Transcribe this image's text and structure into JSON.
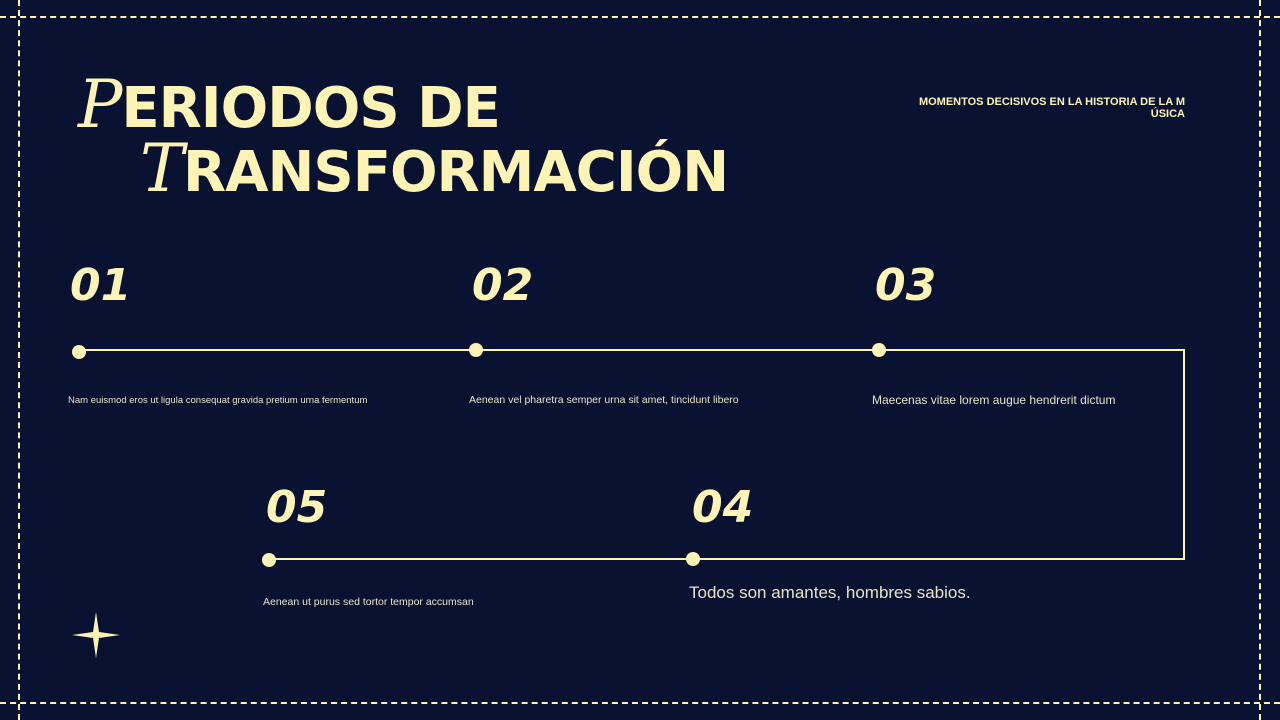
{
  "title": {
    "line1_cap": "P",
    "line1_rest": "ERIODOS DE",
    "line2_cap": "T",
    "line2_rest": "RANSFORMACIÓN"
  },
  "subtitle": "MOMENTOS DECISIVOS EN LA HISTORIA DE LA MÚSICA",
  "accent_color": "#fdf3b4",
  "background_color": "#0a1232",
  "steps": [
    {
      "number": "01",
      "text": "Nam euismod eros ut ligula consequat gravida pretium urna fermentum"
    },
    {
      "number": "02",
      "text": "Aenean vel pharetra semper urna sit amet, tincidunt libero"
    },
    {
      "number": "03",
      "text": "Maecenas vitae lorem augue hendrerit dictum"
    },
    {
      "number": "04",
      "text": "Todos son amantes, hombres sabios."
    },
    {
      "number": "05",
      "text": "Aenean ut purus sed tortor tempor accumsan"
    }
  ],
  "decoration": "sparkle-icon"
}
